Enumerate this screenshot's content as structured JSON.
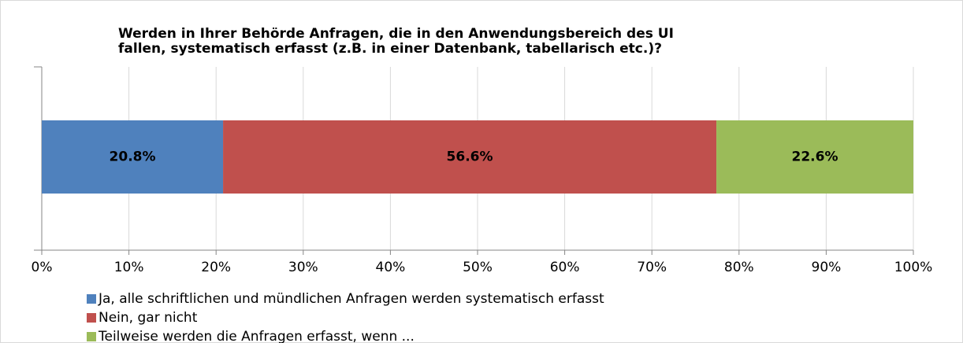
{
  "chart_data": {
    "type": "stacked-bar-horizontal",
    "title": [
      "Werden in Ihrer Behörde Anfragen, die in den Anwendungsbereich des UI",
      "fallen, systematisch erfasst (z.B. in einer Datenbank, tabellarisch etc.)?"
    ],
    "series": [
      {
        "name": "Ja, alle schriftlichen und mündlichen Anfragen werden systematisch erfasst",
        "color": "#4f81bd",
        "values": [
          20.8
        ],
        "value_labels": [
          "20.8%"
        ]
      },
      {
        "name": "Nein, gar nicht",
        "color": "#c0504d",
        "values": [
          56.6
        ],
        "value_labels": [
          "56.6%"
        ]
      },
      {
        "name": "Teilweise werden die Anfragen erfasst, wenn ...",
        "color": "#9bbb59",
        "values": [
          22.6
        ],
        "value_labels": [
          "22.6%"
        ]
      }
    ],
    "xlim": [
      0,
      100
    ],
    "xticks": [
      {
        "value": 0,
        "label": "0%"
      },
      {
        "value": 10,
        "label": "10%"
      },
      {
        "value": 20,
        "label": "20%"
      },
      {
        "value": 30,
        "label": "30%"
      },
      {
        "value": 40,
        "label": "40%"
      },
      {
        "value": 50,
        "label": "50%"
      },
      {
        "value": 60,
        "label": "60%"
      },
      {
        "value": 70,
        "label": "70%"
      },
      {
        "value": 80,
        "label": "80%"
      },
      {
        "value": 90,
        "label": "90%"
      },
      {
        "value": 100,
        "label": "100%"
      }
    ],
    "grid": true,
    "legend": "bottom"
  }
}
